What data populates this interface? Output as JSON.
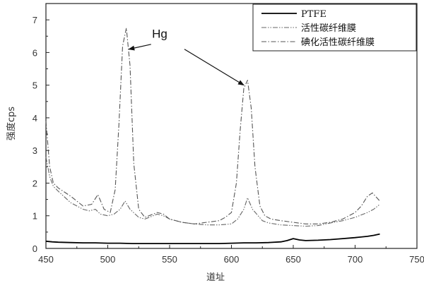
{
  "chart_data": {
    "type": "line",
    "xlabel": "道址",
    "ylabel": "强度cps",
    "xlim": [
      450,
      750
    ],
    "ylim": [
      0,
      7.5
    ],
    "xticks": [
      "450",
      "500",
      "550",
      "600",
      "650",
      "700",
      "750"
    ],
    "yticks": [
      "0",
      "1",
      "2",
      "3",
      "4",
      "5",
      "6",
      "7"
    ],
    "grid": false,
    "legend_position": "top-right",
    "series": [
      {
        "name": "PTFE",
        "style": "solid",
        "color": "#000000",
        "x": [
          450,
          455,
          460,
          470,
          480,
          490,
          500,
          510,
          520,
          530,
          540,
          550,
          560,
          570,
          580,
          590,
          600,
          610,
          620,
          630,
          640,
          645,
          650,
          655,
          660,
          670,
          680,
          690,
          700,
          710,
          715,
          720
        ],
        "y": [
          0.22,
          0.2,
          0.19,
          0.18,
          0.17,
          0.17,
          0.16,
          0.16,
          0.15,
          0.15,
          0.15,
          0.15,
          0.15,
          0.15,
          0.15,
          0.15,
          0.16,
          0.17,
          0.17,
          0.18,
          0.2,
          0.24,
          0.3,
          0.26,
          0.24,
          0.25,
          0.27,
          0.3,
          0.33,
          0.37,
          0.4,
          0.44
        ]
      },
      {
        "name": "活性碳纤维膜",
        "style": "dash-dot-dot",
        "color": "#666666",
        "x": [
          450,
          453,
          456,
          460,
          470,
          480,
          485,
          490,
          494,
          500,
          505,
          510,
          514,
          518,
          525,
          530,
          540,
          545,
          550,
          560,
          570,
          580,
          590,
          600,
          605,
          610,
          613,
          617,
          625,
          630,
          640,
          650,
          660,
          670,
          680,
          690,
          700,
          710,
          715,
          720
        ],
        "y": [
          2.8,
          2.2,
          1.9,
          1.75,
          1.4,
          1.2,
          1.15,
          1.2,
          1.05,
          1.0,
          1.05,
          1.2,
          1.45,
          1.2,
          0.95,
          0.9,
          1.05,
          1.0,
          0.9,
          0.8,
          0.75,
          0.72,
          0.72,
          0.75,
          0.9,
          1.2,
          1.55,
          1.2,
          0.85,
          0.78,
          0.72,
          0.7,
          0.68,
          0.7,
          0.78,
          0.85,
          0.95,
          1.1,
          1.2,
          1.35
        ]
      },
      {
        "name": "碘化活性碳纤维膜",
        "style": "dash-dot",
        "color": "#555555",
        "x": [
          450,
          453,
          456,
          460,
          470,
          480,
          487,
          492,
          497,
          502,
          506,
          509,
          512,
          515,
          518,
          521,
          525,
          530,
          540,
          545,
          550,
          560,
          570,
          580,
          590,
          595,
          600,
          604,
          607,
          610,
          613,
          616,
          619,
          623,
          627,
          632,
          640,
          650,
          660,
          670,
          680,
          690,
          700,
          705,
          710,
          714,
          720
        ],
        "y": [
          3.9,
          2.5,
          2.0,
          1.85,
          1.6,
          1.3,
          1.35,
          1.65,
          1.2,
          1.1,
          1.8,
          3.8,
          6.2,
          6.75,
          5.6,
          2.6,
          1.2,
          0.95,
          1.1,
          1.05,
          0.9,
          0.8,
          0.75,
          0.8,
          0.85,
          0.95,
          1.1,
          2.0,
          3.6,
          4.9,
          5.15,
          4.3,
          2.5,
          1.3,
          1.0,
          0.9,
          0.85,
          0.8,
          0.75,
          0.75,
          0.8,
          0.9,
          1.1,
          1.3,
          1.6,
          1.7,
          1.45
        ]
      }
    ],
    "annotations": [
      {
        "text": "Hg",
        "pos": [
          542,
          6.45
        ]
      }
    ],
    "arrows": [
      {
        "from": [
          535,
          6.25
        ],
        "to": [
          517,
          6.1
        ]
      },
      {
        "from": [
          562,
          6.1
        ],
        "to": [
          610,
          5.0
        ]
      }
    ]
  }
}
